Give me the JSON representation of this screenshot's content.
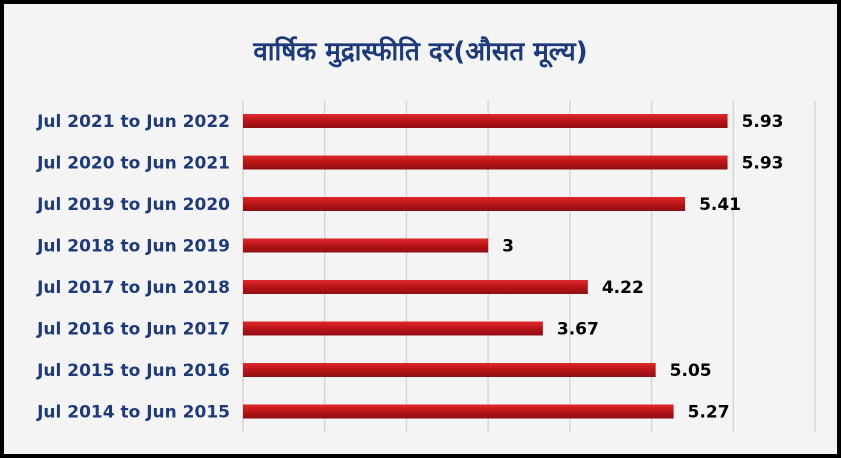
{
  "chart_data": {
    "type": "bar",
    "orientation": "horizontal",
    "title": "वार्षिक मुद्रास्फीति दर(औसत मूल्य)",
    "categories": [
      "Jul 2021 to Jun 2022",
      "Jul 2020 to Jun 2021",
      "Jul 2019 to Jun 2020",
      "Jul 2018 to Jun 2019",
      "Jul 2017 to Jun 2018",
      "Jul 2016 to Jun 2017",
      "Jul 2015 to Jun 2016",
      "Jul 2014 to Jun 2015"
    ],
    "values": [
      5.93,
      5.93,
      5.41,
      3,
      4.22,
      3.67,
      5.05,
      5.27
    ],
    "value_labels": [
      "5.93",
      "5.93",
      "5.41",
      "3",
      "4.22",
      "3.67",
      "5.05",
      "5.27"
    ],
    "xlim": [
      0,
      7
    ],
    "grid": true,
    "bar_color": "#c0181c",
    "title_color": "#1f3a78"
  }
}
